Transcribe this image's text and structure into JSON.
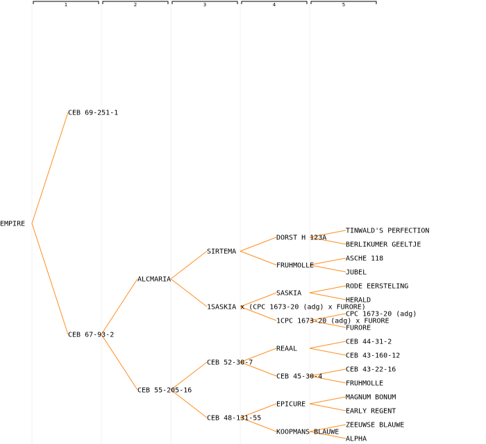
{
  "generations": [
    "1",
    "2",
    "3",
    "4",
    "5"
  ],
  "colors": {
    "edge": "#ff8c1a",
    "text": "#000000",
    "grid": "#f0f0f0"
  },
  "tree": {
    "label": "EMPIRE",
    "children": [
      {
        "label": "CEB 69-251-1",
        "children": []
      },
      {
        "label": "CEB 67-93-2",
        "children": [
          {
            "label": "ALCMARIA",
            "children": [
              {
                "label": "SIRTEMA",
                "children": [
                  {
                    "label": "DORST H 123A",
                    "children": [
                      {
                        "label": "TINWALD'S PERFECTION",
                        "children": []
                      },
                      {
                        "label": "BERLIKUMER GEELTJE",
                        "children": []
                      }
                    ]
                  },
                  {
                    "label": "FRUHMOLLE",
                    "children": [
                      {
                        "label": "ASCHE 118",
                        "children": []
                      },
                      {
                        "label": "JUBEL",
                        "children": []
                      }
                    ]
                  }
                ]
              },
              {
                "label": "1SASKIA x (CPC 1673-20 (adg) x FURORE)",
                "children": [
                  {
                    "label": "SASKIA",
                    "children": [
                      {
                        "label": "RODE EERSTELING",
                        "children": []
                      },
                      {
                        "label": "HERALD",
                        "children": []
                      }
                    ]
                  },
                  {
                    "label": "1CPC 1673-20 (adg) x FURORE",
                    "children": [
                      {
                        "label": "CPC 1673-20 (adg)",
                        "children": []
                      },
                      {
                        "label": "FURORE",
                        "children": []
                      }
                    ]
                  }
                ]
              }
            ]
          },
          {
            "label": "CEB 55-205-16",
            "children": [
              {
                "label": "CEB 52-30-7",
                "children": [
                  {
                    "label": "REAAL",
                    "children": [
                      {
                        "label": "CEB 44-31-2",
                        "children": []
                      },
                      {
                        "label": "CEB 43-160-12",
                        "children": []
                      }
                    ]
                  },
                  {
                    "label": "CEB 45-30-4",
                    "children": [
                      {
                        "label": "CEB 43-22-16",
                        "children": []
                      },
                      {
                        "label": "FRUHMOLLE",
                        "children": []
                      }
                    ]
                  }
                ]
              },
              {
                "label": "CEB 48-131-55",
                "children": [
                  {
                    "label": "EPICURE",
                    "children": [
                      {
                        "label": "MAGNUM BONUM",
                        "children": []
                      },
                      {
                        "label": "EARLY REGENT",
                        "children": []
                      }
                    ]
                  },
                  {
                    "label": "KOOPMANS BLAUWE",
                    "children": [
                      {
                        "label": "ZEEUWSE BLAUWE",
                        "children": []
                      },
                      {
                        "label": "ALPHA",
                        "children": []
                      }
                    ]
                  }
                ]
              }
            ]
          }
        ]
      }
    ]
  }
}
